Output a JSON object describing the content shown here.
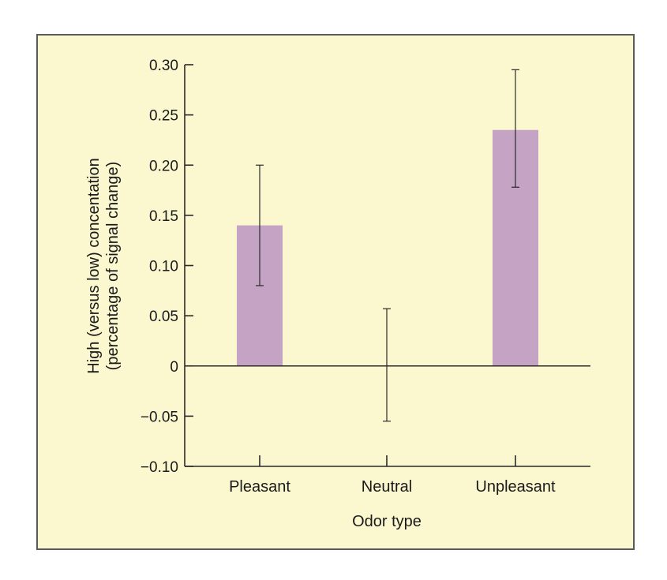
{
  "colors": {
    "panel_background": "#fbf7cf",
    "bar_fill": "#c5a3c4",
    "axis": "#2a2a2a",
    "error_bar": "#2a2a2a"
  },
  "chart_data": {
    "type": "bar",
    "title": "",
    "categories": [
      "Pleasant",
      "Neutral",
      "Unpleasant"
    ],
    "values": [
      0.14,
      0.0,
      0.235
    ],
    "error_low": [
      0.08,
      -0.055,
      0.178
    ],
    "error_high": [
      0.2,
      0.057,
      0.295
    ],
    "xlabel": "Odor type",
    "ylabel_line1": "High (versus low) concentation",
    "ylabel_line2": "(percentage of signal change)",
    "ylim": [
      -0.1,
      0.3
    ],
    "yticks": [
      -0.1,
      -0.05,
      0,
      0.05,
      0.1,
      0.15,
      0.2,
      0.25,
      0.3
    ],
    "ytick_labels": [
      "−0.10",
      "−0.05",
      "0",
      "0.05",
      "0.10",
      "0.15",
      "0.20",
      "0.25",
      "0.30"
    ],
    "grid": false,
    "legend": "none"
  }
}
